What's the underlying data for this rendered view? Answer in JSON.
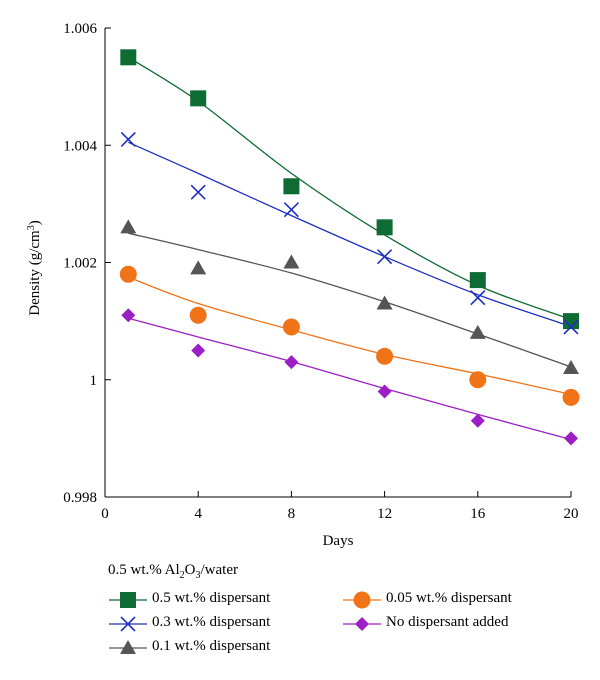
{
  "chart_data": {
    "type": "scatter",
    "xlabel": "Days",
    "ylabel": "Density (g/cm³)",
    "xlim": [
      0,
      20
    ],
    "ylim": [
      0.998,
      1.006
    ],
    "xticks": [
      0,
      4,
      8,
      12,
      16,
      20
    ],
    "xtick_labels": [
      "0",
      "4",
      "8",
      "12",
      "16",
      "20"
    ],
    "yticks": [
      0.998,
      1.0,
      1.002,
      1.004,
      1.006
    ],
    "ytick_labels": [
      "0.998",
      "1",
      "1.002",
      "1.004",
      "1.006"
    ],
    "grid": false,
    "legend_title": "0.5 wt.% Al2O3/water",
    "legend_title_parts": [
      "0.5 wt.% Al",
      "2",
      "O",
      "3",
      "/water"
    ],
    "series": [
      {
        "name": "0.5 wt.% dispersant",
        "marker": "square",
        "color": "#0e6b33",
        "x": [
          1,
          4,
          8,
          12,
          16,
          20
        ],
        "y": [
          1.0055,
          1.0048,
          1.0033,
          1.0026,
          1.0017,
          1.001
        ],
        "fit": [
          1.0055,
          1.00475,
          1.00352,
          1.00247,
          1.00161,
          1.00103
        ]
      },
      {
        "name": "0.3 wt.% dispersant",
        "marker": "x",
        "color": "#1f2fbf",
        "x": [
          1,
          4,
          8,
          12,
          16,
          20
        ],
        "y": [
          1.0041,
          1.0032,
          1.0029,
          1.0021,
          1.0014,
          1.0009
        ],
        "fit": [
          1.00405,
          1.00352,
          1.0028,
          1.0021,
          1.00145,
          1.00091
        ]
      },
      {
        "name": "0.1 wt.% dispersant",
        "marker": "triangle",
        "color": "#555555",
        "x": [
          1,
          4,
          8,
          12,
          16,
          20
        ],
        "y": [
          1.0026,
          1.0019,
          1.002,
          1.0013,
          1.0008,
          1.0002
        ],
        "fit": [
          1.0025,
          1.00222,
          1.00182,
          1.00133,
          1.00078,
          1.00022
        ]
      },
      {
        "name": "0.05 wt.% dispersant",
        "marker": "circle",
        "color": "#f07318",
        "x": [
          1,
          4,
          8,
          12,
          16,
          20
        ],
        "y": [
          1.0018,
          1.0011,
          1.0009,
          1.0004,
          1.0,
          0.9997
        ],
        "fit": [
          1.00175,
          1.0013,
          1.00085,
          1.00043,
          1.0001,
          0.99975
        ]
      },
      {
        "name": "No dispersant added",
        "marker": "diamond",
        "color": "#9b1fc4",
        "x": [
          1,
          4,
          8,
          12,
          16,
          20
        ],
        "y": [
          1.0011,
          1.0005,
          1.0003,
          0.9998,
          0.9993,
          0.999
        ],
        "fit": [
          1.00105,
          1.00073,
          1.00031,
          0.99985,
          0.99941,
          0.99898
        ]
      }
    ]
  }
}
